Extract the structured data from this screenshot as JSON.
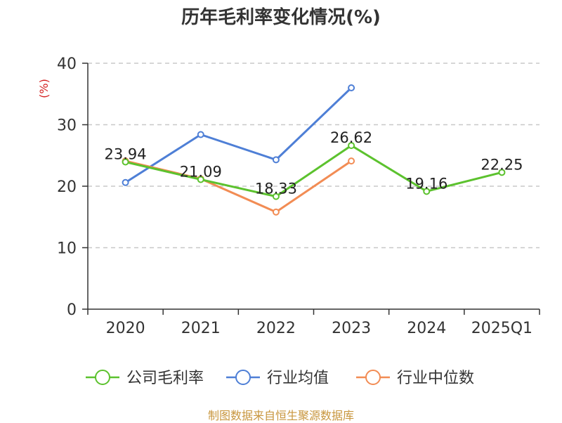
{
  "title": "历年毛利率变化情况(%)",
  "source": "制图数据来自恒生聚源数据库",
  "chart_data": {
    "type": "line",
    "title": "历年毛利率变化情况(%)",
    "ylabel": "(%)",
    "xlabel": "",
    "categories": [
      "2020",
      "2021",
      "2022",
      "2023",
      "2024",
      "2025Q1"
    ],
    "ylim": [
      0,
      40
    ],
    "yticks": [
      0,
      10,
      20,
      30,
      40
    ],
    "grid": true,
    "legend_position": "bottom",
    "series": [
      {
        "name": "公司毛利率",
        "color": "#5cc22e",
        "values": [
          23.94,
          21.09,
          18.33,
          26.62,
          19.16,
          22.25
        ],
        "labels": [
          "23.94",
          "21.09",
          "18.33",
          "26.62",
          "19.16",
          "22.25"
        ]
      },
      {
        "name": "行业均值",
        "color": "#4e7fd6",
        "values": [
          20.6,
          28.4,
          24.3,
          36.0,
          null,
          null
        ]
      },
      {
        "name": "行业中位数",
        "color": "#f28c54",
        "values": [
          24.1,
          21.2,
          15.8,
          24.1,
          null,
          null
        ]
      }
    ]
  }
}
